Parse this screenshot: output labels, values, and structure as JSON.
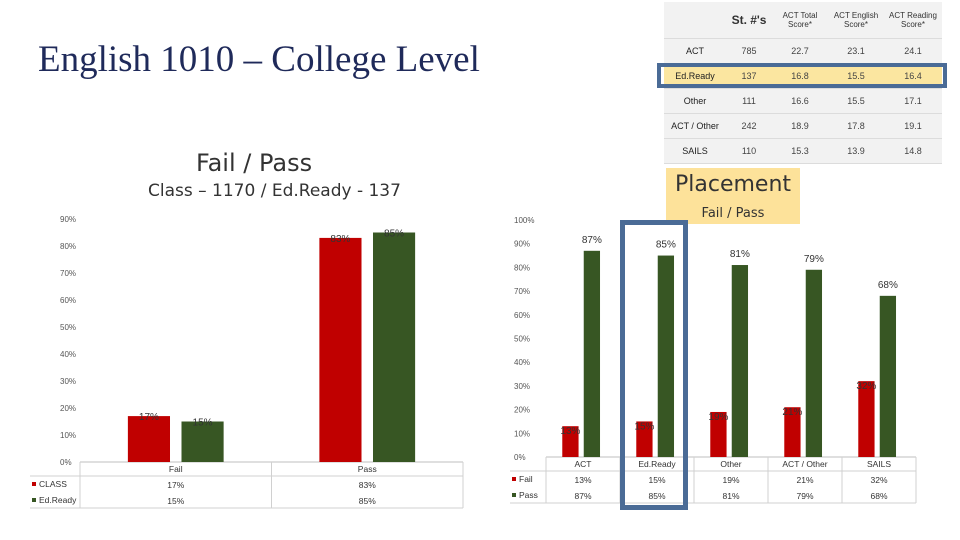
{
  "page": {
    "title": "English 1010 – College Level",
    "chart1_title": "Fail / Pass",
    "chart1_subtitle": "Class – 1170 / Ed.Ready - 137",
    "placement_title": "Placement",
    "placement_subtitle": "Fail / Pass"
  },
  "table": {
    "headers": [
      "",
      "St. #'s",
      "ACT Total Score*",
      "ACT English Score*",
      "ACT Reading Score*"
    ],
    "rows": [
      [
        "ACT",
        "785",
        "22.7",
        "23.1",
        "24.1"
      ],
      [
        "Ed.Ready",
        "137",
        "16.8",
        "15.5",
        "16.4"
      ],
      [
        "Other",
        "111",
        "16.6",
        "15.5",
        "17.1"
      ],
      [
        "ACT / Other",
        "242",
        "18.9",
        "17.8",
        "19.1"
      ],
      [
        "SAILS",
        "110",
        "15.3",
        "13.9",
        "14.8"
      ]
    ],
    "highlight_row": "Ed.Ready",
    "highlight_color": "#fbe6a0",
    "frame_color": "#4a6b96"
  },
  "chart_data": [
    {
      "type": "bar",
      "title": "Fail / Pass",
      "subtitle": "Class – 1170 / Ed.Ready - 137",
      "categories": [
        "Fail",
        "Pass"
      ],
      "ylim": [
        0,
        90
      ],
      "yticks": [
        "0%",
        "10%",
        "20%",
        "30%",
        "40%",
        "50%",
        "60%",
        "70%",
        "80%",
        "90%"
      ],
      "series": [
        {
          "name": "CLASS",
          "values": [
            17,
            83
          ],
          "labels": [
            "17%",
            "83%"
          ],
          "color": "#c00000"
        },
        {
          "name": "Ed.Ready",
          "values": [
            15,
            85
          ],
          "labels": [
            "15%",
            "85%"
          ],
          "color": "#375623"
        }
      ],
      "legend": "data-table-below",
      "grid": false
    },
    {
      "type": "bar",
      "title": "Placement",
      "subtitle": "Fail / Pass",
      "categories": [
        "ACT",
        "Ed.Ready",
        "Other",
        "ACT / Other",
        "SAILS"
      ],
      "ylim": [
        0,
        100
      ],
      "yticks": [
        "0%",
        "10%",
        "20%",
        "30%",
        "40%",
        "50%",
        "60%",
        "70%",
        "80%",
        "90%",
        "100%"
      ],
      "series": [
        {
          "name": "Fail",
          "values": [
            13,
            15,
            19,
            21,
            32
          ],
          "labels": [
            "13%",
            "15%",
            "19%",
            "21%",
            "32%"
          ],
          "color": "#c00000"
        },
        {
          "name": "Pass",
          "values": [
            87,
            85,
            81,
            79,
            68
          ],
          "labels": [
            "87%",
            "85%",
            "81%",
            "79%",
            "68%"
          ],
          "color": "#375623"
        }
      ],
      "highlighted_category": "Ed.Ready",
      "legend": "data-table-below",
      "grid": false
    }
  ]
}
